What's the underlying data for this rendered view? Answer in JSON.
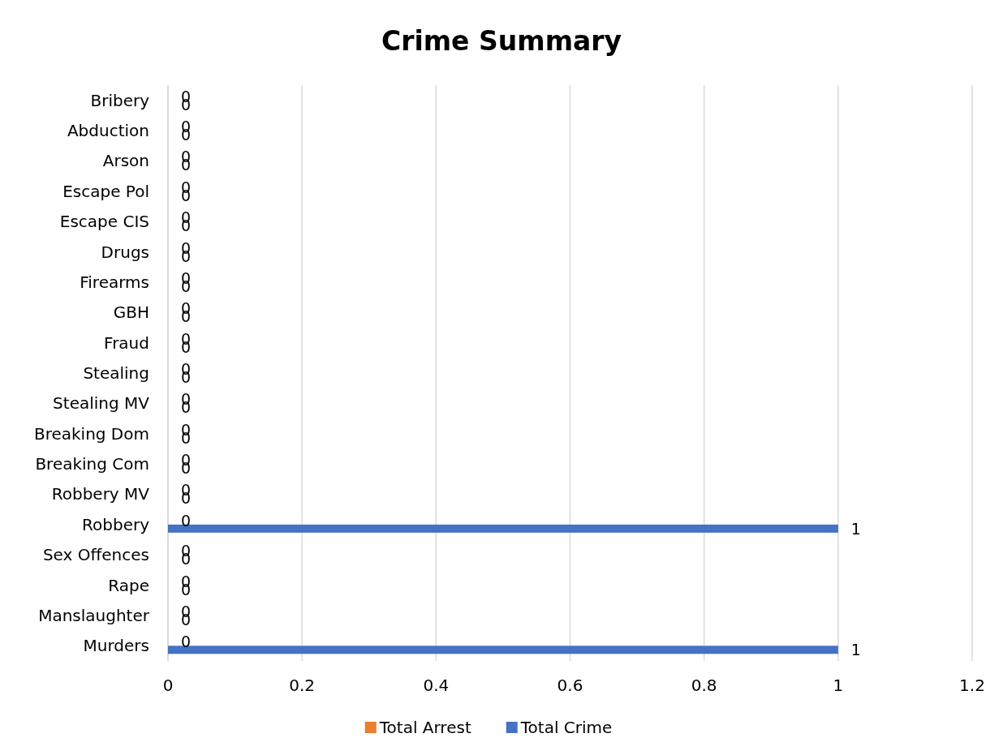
{
  "chart_data": {
    "type": "bar",
    "title": "Crime Summary",
    "orientation": "horizontal",
    "categories": [
      "Bribery",
      "Abduction",
      "Arson",
      "Escape Pol",
      "Escape CIS",
      "Drugs",
      "Firearms",
      "GBH",
      "Fraud",
      "Stealing",
      "Stealing MV",
      "Breaking Dom",
      "Breaking Com",
      "Robbery MV",
      "Robbery",
      "Sex Offences",
      "Rape",
      "Manslaughter",
      "Murders"
    ],
    "series": [
      {
        "name": "Total Arrest",
        "color": "#ed7d31",
        "values": [
          0,
          0,
          0,
          0,
          0,
          0,
          0,
          0,
          0,
          0,
          0,
          0,
          0,
          0,
          0,
          0,
          0,
          0,
          0
        ]
      },
      {
        "name": "Total Crime",
        "color": "#4472c4",
        "values": [
          0,
          0,
          0,
          0,
          0,
          0,
          0,
          0,
          0,
          0,
          0,
          0,
          0,
          0,
          1,
          0,
          0,
          0,
          1
        ]
      }
    ],
    "xlim": [
      0,
      1.2
    ],
    "xticks": [
      0,
      0.2,
      0.4,
      0.6,
      0.8,
      1,
      1.2
    ],
    "grid": "x",
    "legend": "bottom",
    "data_labels": true
  }
}
